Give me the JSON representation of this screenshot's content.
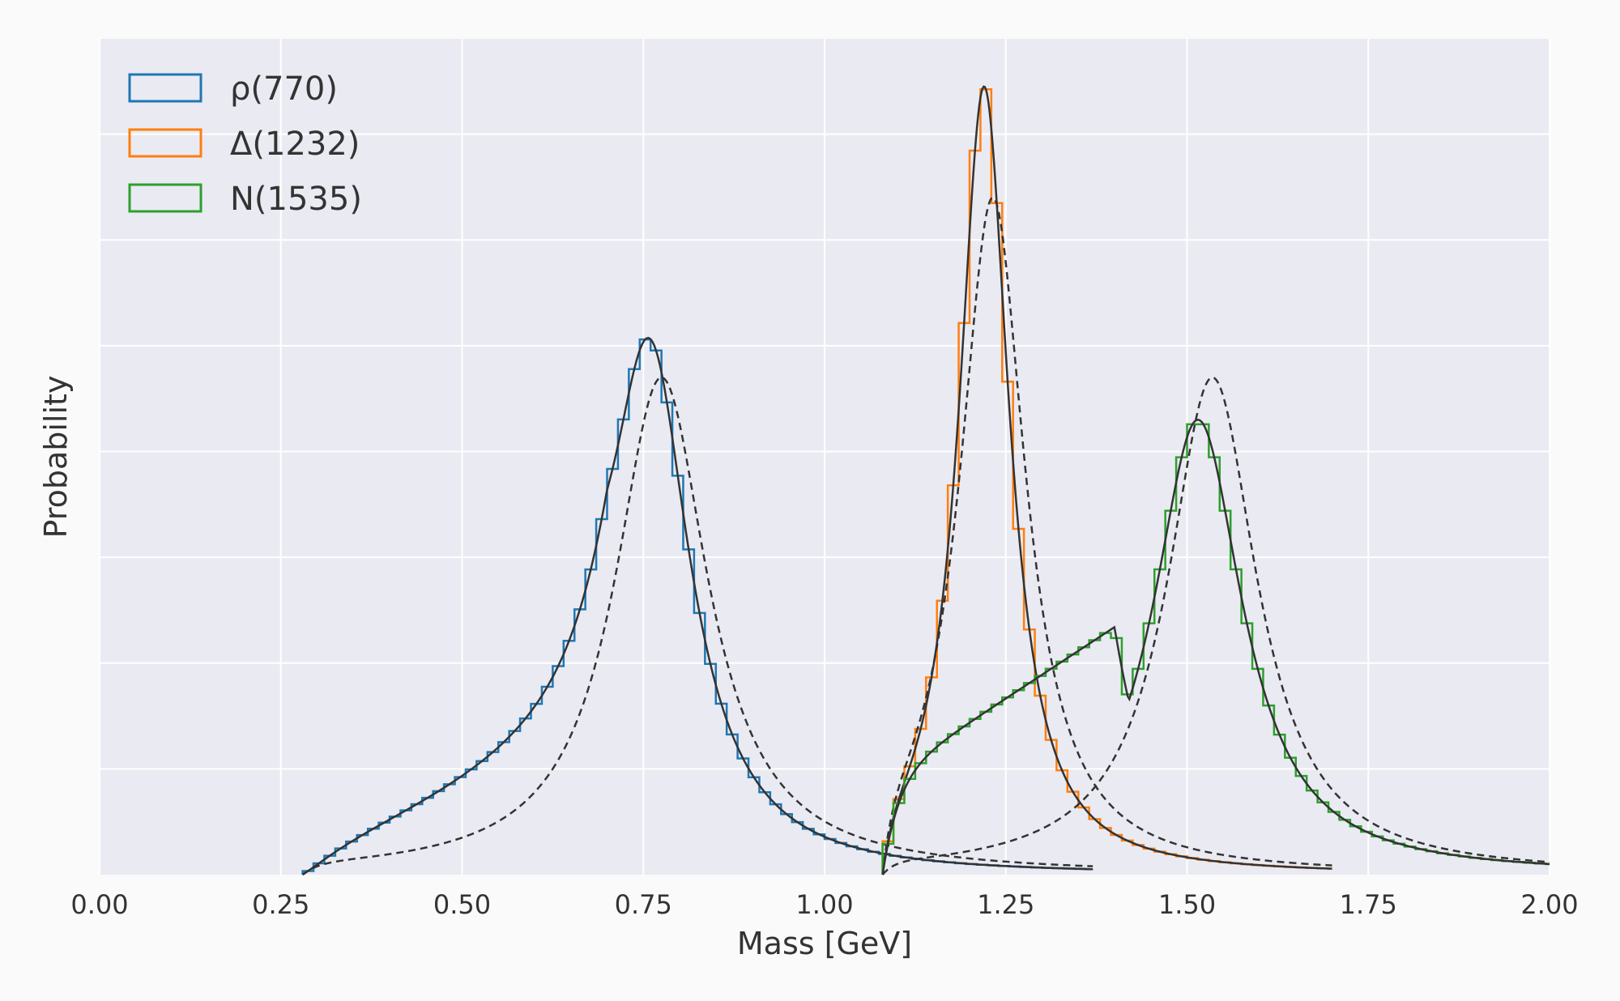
{
  "chart_data": {
    "type": "line",
    "title": "",
    "xlabel": "Mass [GeV]",
    "ylabel": "Probability",
    "xlim": [
      0,
      2.0
    ],
    "ylim": [
      0,
      7.9
    ],
    "x_ticks": [
      "0.00",
      "0.25",
      "0.50",
      "0.75",
      "1.00",
      "1.25",
      "1.50",
      "1.75",
      "2.00"
    ],
    "y_tick_labels_shown": false,
    "grid": true,
    "legend_position": "top-left",
    "background_color": "#eaeaf2",
    "grid_color": "#ffffff",
    "curve_color": "#333333",
    "series": [
      {
        "name": "ρ(770)",
        "color": "#1f77b4",
        "style": "step histogram with solid fitted curve and dashed Breit-Wigner reference",
        "threshold": 0.28,
        "range_max": 1.37,
        "peak_x": 0.76,
        "peak_y": 4.4,
        "ref_peak_x": 0.775,
        "ref_peak_y": 4.7
      },
      {
        "name": "Δ(1232)",
        "color": "#ff7f0e",
        "style": "step histogram with solid fitted curve and dashed Breit-Wigner reference",
        "threshold": 1.08,
        "range_max": 1.7,
        "peak_x": 1.22,
        "peak_y": 7.45,
        "ref_peak_x": 1.232,
        "ref_peak_y": 6.4
      },
      {
        "name": "N(1535)",
        "color": "#2ca02c",
        "style": "step histogram with solid fitted curve and dashed Breit-Wigner reference",
        "threshold": 1.08,
        "range_max": 2.0,
        "peak_x": 1.515,
        "peak_y": 4.3,
        "ref_peak_x": 1.535,
        "ref_peak_y": 4.7
      }
    ]
  }
}
